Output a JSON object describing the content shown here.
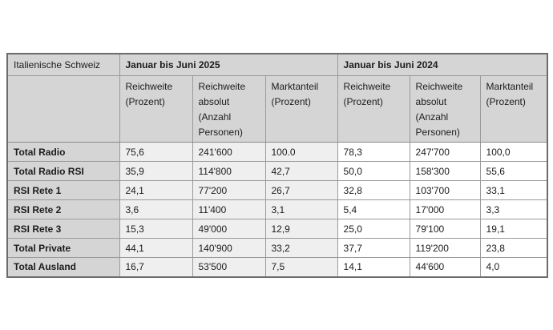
{
  "table": {
    "corner_label": "Italienische Schweiz",
    "col_groups": [
      {
        "label": "Januar bis Juni 2025",
        "sub_columns": [
          "Reichweite (Prozent)",
          "Reichweite absolut (Anzahl Personen)",
          "Marktanteil (Prozent)"
        ]
      },
      {
        "label": "Januar bis Juni 2024",
        "sub_columns": [
          "Reichweite (Prozent)",
          "Reichweite absolut (Anzahl Personen)",
          "Marktanteil (Prozent)"
        ]
      }
    ],
    "rows": [
      {
        "label": "Total Radio",
        "values": [
          "75,6",
          "241'600",
          "100.0",
          "78,3",
          "247'700",
          "100,0"
        ]
      },
      {
        "label": "Total Radio RSI",
        "values": [
          "35,9",
          "114'800",
          "42,7",
          "50,0",
          "158'300",
          "55,6"
        ]
      },
      {
        "label": "RSI Rete 1",
        "values": [
          "24,1",
          "77'200",
          "26,7",
          "32,8",
          "103'700",
          "33,1"
        ]
      },
      {
        "label": "RSI Rete 2",
        "values": [
          "3,6",
          "11'400",
          "3,1",
          "5,4",
          "17'000",
          "3,3"
        ]
      },
      {
        "label": "RSI Rete 3",
        "values": [
          "15,3",
          "49'000",
          "12,9",
          "25,0",
          "79'100",
          "19,1"
        ]
      },
      {
        "label": "Total Private",
        "values": [
          "44,1",
          "140'900",
          "33,2",
          "37,7",
          "119'200",
          "23,8"
        ]
      },
      {
        "label": "Total Ausland",
        "values": [
          "16,7",
          "53'500",
          "7,5",
          "14,1",
          "44'600",
          "4,0"
        ]
      }
    ],
    "colors": {
      "header_bg": "#d5d5d5",
      "data_2025_bg": "#efefef",
      "data_2024_bg": "#ffffff",
      "inner_border": "#9a9a9a",
      "outer_border": "#6b6b6b",
      "text": "#1c1c1c"
    }
  }
}
